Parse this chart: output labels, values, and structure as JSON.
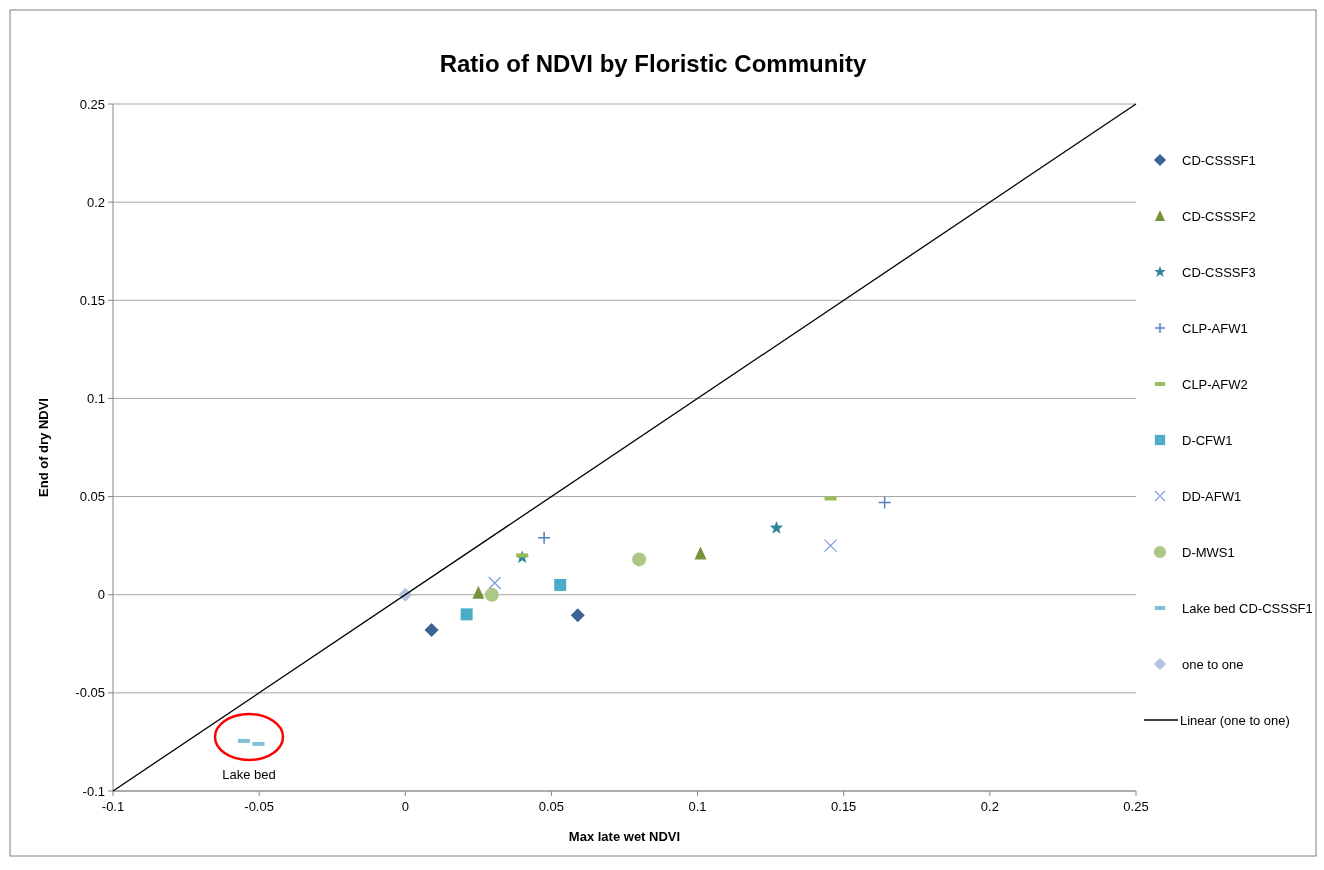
{
  "chart_data": {
    "type": "scatter",
    "title": "Ratio of NDVI by Floristic Community",
    "xlabel": "Max late wet NDVI",
    "ylabel": "End of dry NDVI",
    "xlim": [
      -0.1,
      0.25
    ],
    "xticks": [
      -0.1,
      -0.05,
      0,
      0.05,
      0.1,
      0.15,
      0.2,
      0.25
    ],
    "ylim": [
      -0.1,
      0.25
    ],
    "yticks": [
      -0.1,
      -0.05,
      0,
      0.05,
      0.1,
      0.15,
      0.2,
      0.25
    ],
    "grid": "y",
    "legend": "right",
    "annotations": [
      "Lake bed"
    ],
    "series": [
      {
        "name": "CD-CSSSF1",
        "color": "#3c6296",
        "marker": "diamond",
        "x": [
          0.009,
          0.059
        ],
        "values": [
          -0.018,
          -0.0105
        ]
      },
      {
        "name": "CD-CSSSF2",
        "color": "#76923c",
        "marker": "triangle",
        "x": [
          0.025,
          0.101
        ],
        "values": [
          0.001,
          0.021
        ]
      },
      {
        "name": "CD-CSSSF3",
        "color": "#31859c",
        "marker": "star",
        "x": [
          0.04,
          0.127
        ],
        "values": [
          0.019,
          0.034
        ]
      },
      {
        "name": "CLP-AFW1",
        "color": "#4f81bd",
        "marker": "cross",
        "x": [
          0.0475,
          0.164
        ],
        "values": [
          0.029,
          0.047
        ]
      },
      {
        "name": "CLP-AFW2",
        "color": "#9bbb59",
        "x": [
          0.04,
          0.1455
        ],
        "values": [
          0.02,
          0.049
        ]
      },
      {
        "name": "D-CFW1",
        "color": "#4bacc6",
        "marker": "square",
        "x": [
          0.021,
          0.053
        ],
        "values": [
          -0.01,
          0.005
        ]
      },
      {
        "name": "DD-AFW1",
        "color": "#7f9fd6",
        "marker": "x",
        "x": [
          0.0306,
          0.1455
        ],
        "values": [
          0.006,
          0.025
        ]
      },
      {
        "name": "D-MWS1",
        "color": "#adc785",
        "marker": "circle",
        "x": [
          0.0296,
          0.08
        ],
        "values": [
          0,
          0.018
        ]
      },
      {
        "name": "Lake bed CD-CSSSF1",
        "color": "#7fbfd8",
        "x": [
          -0.0552,
          -0.0502
        ],
        "values": [
          -0.0745,
          -0.076
        ]
      },
      {
        "name": "one to one",
        "color": "#b4c3e0",
        "marker": "diamond",
        "x": [
          0
        ],
        "values": [
          0
        ]
      },
      {
        "name": "Linear (one to one)",
        "type": "line",
        "color": "#000000",
        "marker": "none",
        "x": [
          -0.1,
          0.25
        ],
        "values": [
          -0.1,
          0.25
        ]
      }
    ]
  }
}
